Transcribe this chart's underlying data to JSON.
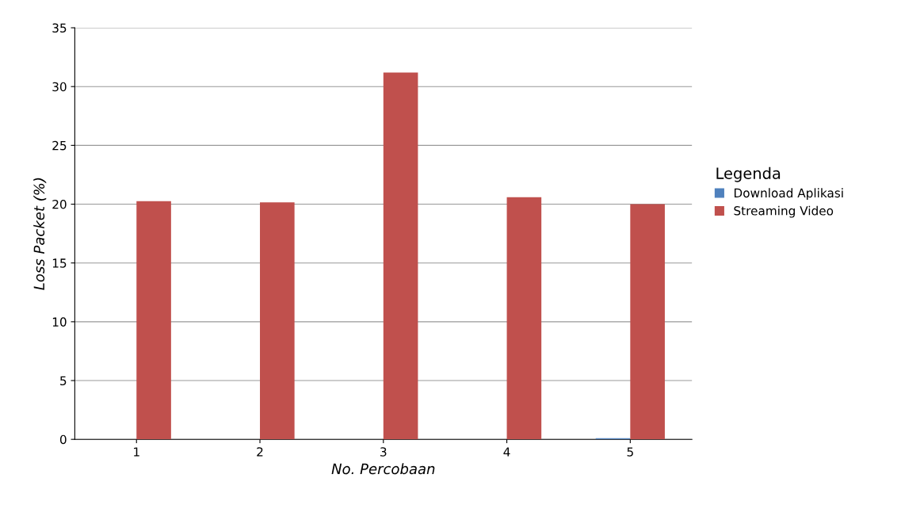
{
  "chart_data": {
    "type": "bar",
    "xlabel": "No. Percobaan",
    "ylabel": "Loss Packet (%)",
    "legend_title": "Legenda",
    "categories": [
      "1",
      "2",
      "3",
      "4",
      "5"
    ],
    "series": [
      {
        "name": "Download Aplikasi",
        "color": "#4f81bd",
        "values": [
          0,
          0,
          0,
          0,
          0.1
        ]
      },
      {
        "name": "Streaming Video",
        "color": "#c0504d",
        "values": [
          20.25,
          20.15,
          31.2,
          20.6,
          20.0
        ]
      }
    ],
    "ylim": [
      0,
      35
    ],
    "yticks": [
      0,
      5,
      10,
      15,
      20,
      25,
      30,
      35
    ],
    "grid": "y",
    "legend": "right"
  }
}
